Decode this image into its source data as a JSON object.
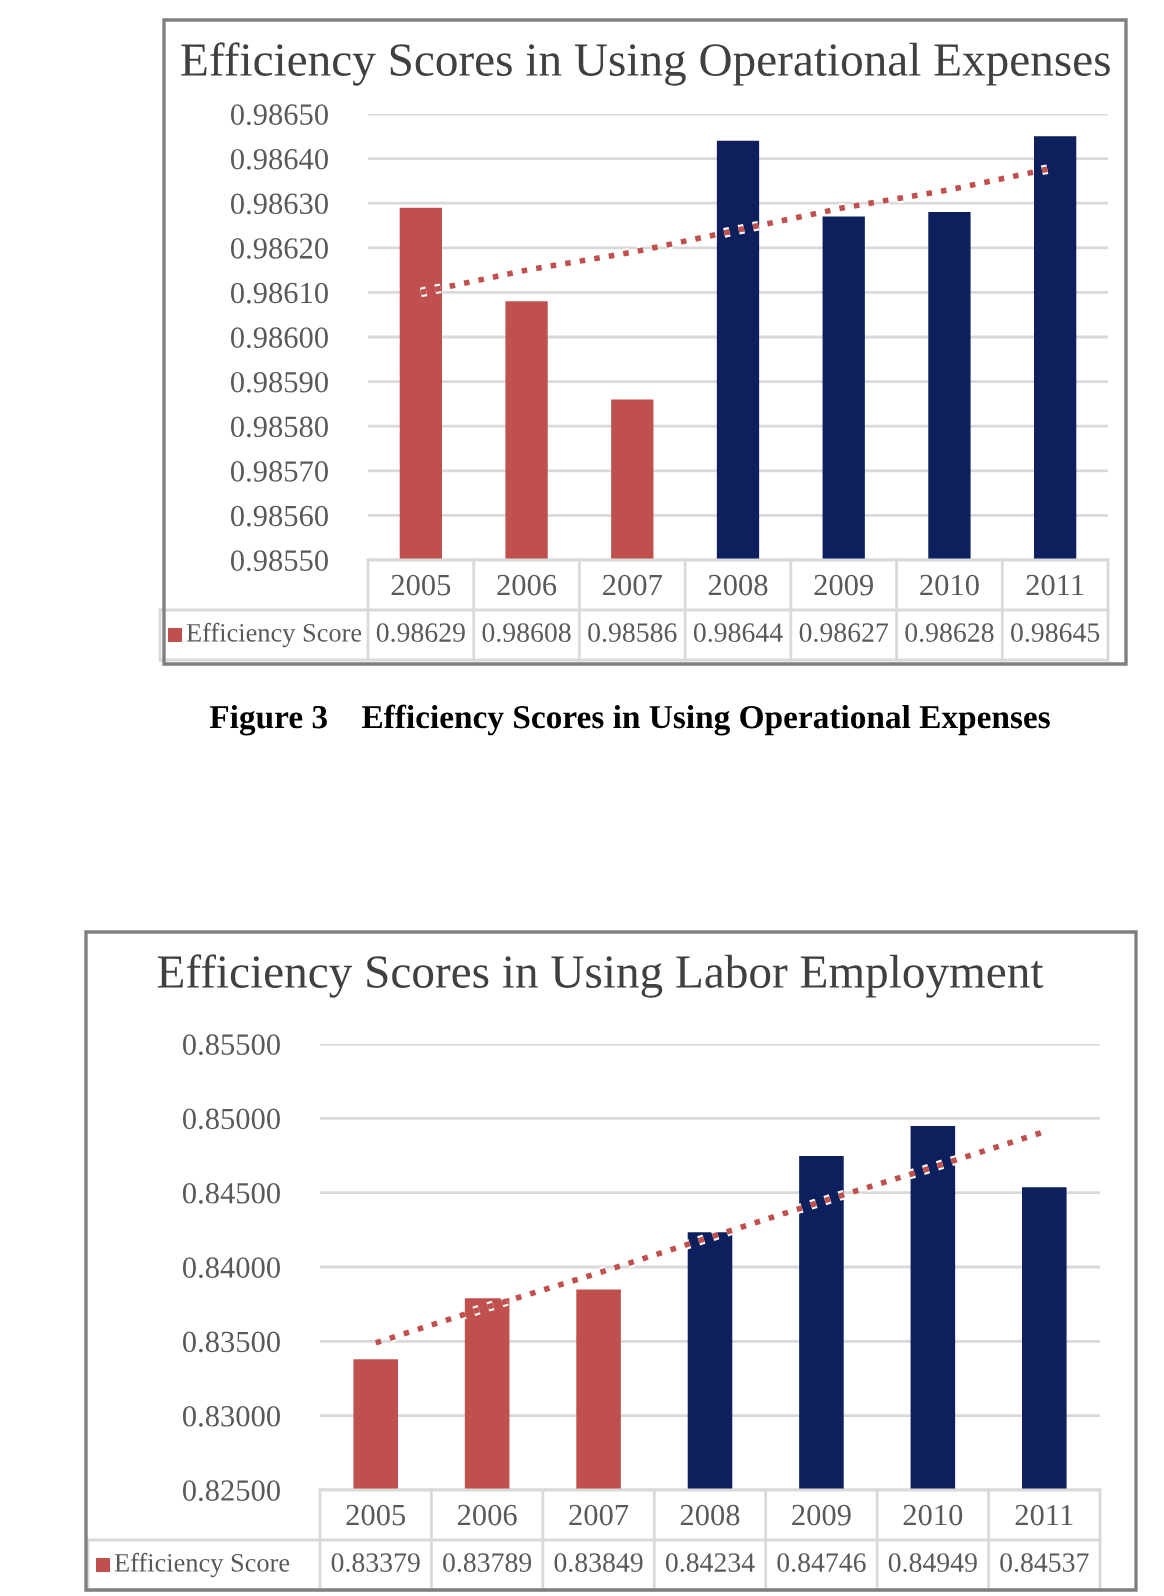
{
  "chart_data": [
    {
      "type": "bar",
      "title": "Efficiency Scores in Using Operational Expenses",
      "categories": [
        "2005",
        "2006",
        "2007",
        "2008",
        "2009",
        "2010",
        "2011"
      ],
      "series": [
        {
          "name": "Efficiency Score",
          "color": "#c0504d",
          "colors": [
            "#c0504d",
            "#c0504d",
            "#c0504d",
            "#0d1f5c",
            "#0d1f5c",
            "#0d1f5c",
            "#0d1f5c"
          ],
          "values": [
            0.98629,
            0.98608,
            0.98586,
            0.98644,
            0.98627,
            0.98628,
            0.98645
          ],
          "value_labels": [
            "0.98629",
            "0.98608",
            "0.98586",
            "0.98644",
            "0.98627",
            "0.98628",
            "0.98645"
          ]
        },
        {
          "type": "line",
          "color": "#c0504d",
          "line_style": "dotted",
          "values": [
            0.9861,
            0.98615,
            0.98619,
            0.98624,
            0.98629,
            0.98633,
            0.98638
          ]
        }
      ],
      "ylim": [
        0.9855,
        0.9865
      ],
      "yticks": [
        {
          "value": 0.9855,
          "label": "0.98550"
        },
        {
          "value": 0.9856,
          "label": "0.98560"
        },
        {
          "value": 0.9857,
          "label": "0.98570"
        },
        {
          "value": 0.9858,
          "label": "0.98580"
        },
        {
          "value": 0.9859,
          "label": "0.98590"
        },
        {
          "value": 0.986,
          "label": "0.98600"
        },
        {
          "value": 0.9861,
          "label": "0.98610"
        },
        {
          "value": 0.9862,
          "label": "0.98620"
        },
        {
          "value": 0.9863,
          "label": "0.98630"
        },
        {
          "value": 0.9864,
          "label": "0.98640"
        },
        {
          "value": 0.9865,
          "label": "0.98650"
        }
      ],
      "grid": "y",
      "annotations": [
        "Figure 3    Efficiency Scores in Using Operational Expenses"
      ]
    },
    {
      "type": "bar",
      "title": "Efficiency Scores in Using Labor Employment",
      "categories": [
        "2005",
        "2006",
        "2007",
        "2008",
        "2009",
        "2010",
        "2011"
      ],
      "series": [
        {
          "name": "Efficiency Score",
          "color": "#c0504d",
          "colors": [
            "#c0504d",
            "#c0504d",
            "#c0504d",
            "#0d1f5c",
            "#0d1f5c",
            "#0d1f5c",
            "#0d1f5c"
          ],
          "values": [
            0.83379,
            0.83789,
            0.83849,
            0.84234,
            0.84746,
            0.84949,
            0.84537
          ],
          "value_labels": [
            "0.83379",
            "0.83789",
            "0.83849",
            "0.84234",
            "0.84746",
            "0.84949",
            "0.84537"
          ]
        },
        {
          "type": "line",
          "color": "#c0504d",
          "line_style": "dotted",
          "values": [
            0.8349,
            0.8373,
            0.8396,
            0.842,
            0.8444,
            0.8467,
            0.8491
          ]
        }
      ],
      "ylim": [
        0.825,
        0.855
      ],
      "yticks": [
        {
          "value": 0.825,
          "label": "0.82500"
        },
        {
          "value": 0.83,
          "label": "0.83000"
        },
        {
          "value": 0.835,
          "label": "0.83500"
        },
        {
          "value": 0.84,
          "label": "0.84000"
        },
        {
          "value": 0.845,
          "label": "0.84500"
        },
        {
          "value": 0.85,
          "label": "0.85000"
        },
        {
          "value": 0.855,
          "label": "0.85500"
        }
      ],
      "grid": "y"
    }
  ]
}
